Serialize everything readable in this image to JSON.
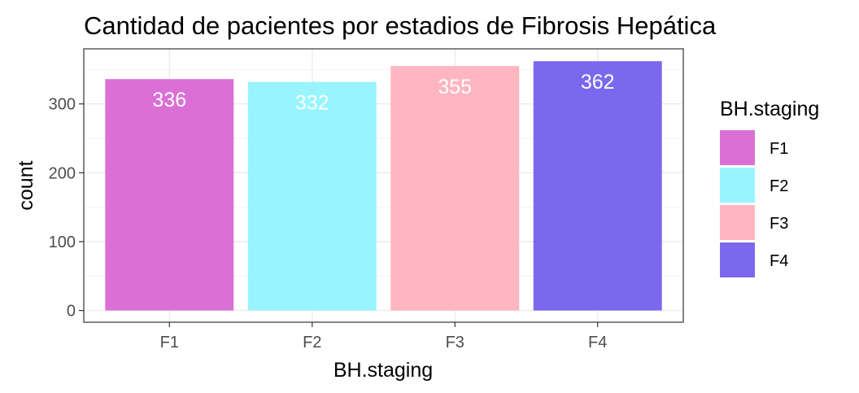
{
  "chart_data": {
    "type": "bar",
    "title": "Cantidad de pacientes por estadios de Fibrosis Hepática",
    "xlabel": "BH.staging",
    "ylabel": "count",
    "categories": [
      "F1",
      "F2",
      "F3",
      "F4"
    ],
    "values": [
      336,
      332,
      355,
      362
    ],
    "data_labels": [
      "336",
      "332",
      "355",
      "362"
    ],
    "colors": [
      "#da70d6",
      "#98f5ff",
      "#ffb6c1",
      "#7b68ee"
    ],
    "ylim": [
      -17,
      380
    ],
    "yticks": [
      0,
      100,
      200,
      300
    ],
    "ytick_labels": [
      "0",
      "100",
      "200",
      "300"
    ],
    "grid": true,
    "legend": {
      "title": "BH.staging",
      "position": "right",
      "entries": [
        "F1",
        "F2",
        "F3",
        "F4"
      ]
    }
  }
}
